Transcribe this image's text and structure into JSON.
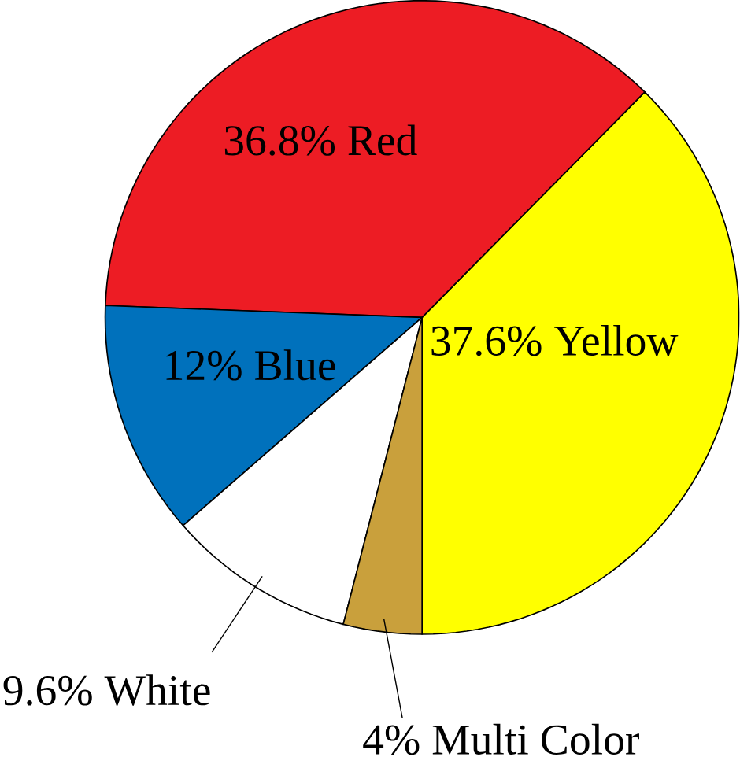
{
  "chart_data": {
    "type": "pie",
    "categories": [
      "Yellow",
      "Red",
      "Blue",
      "White",
      "Multi Color"
    ],
    "values": [
      37.6,
      36.8,
      12,
      9.6,
      4
    ],
    "value_labels": [
      "37.6%",
      "36.8%",
      "12%",
      "9.6%",
      "4%"
    ],
    "colors": [
      "#ffff00",
      "#ed1c24",
      "#0071bc",
      "#ffffff",
      "#c9a03c"
    ]
  }
}
